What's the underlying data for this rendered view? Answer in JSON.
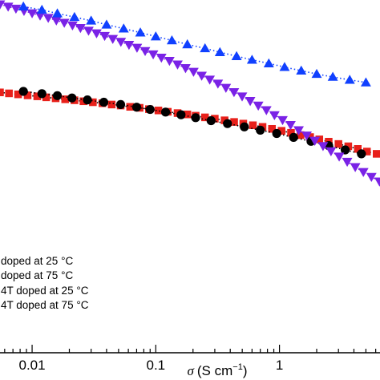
{
  "chart_data": {
    "type": "scatter",
    "title": "",
    "xlabel": {
      "symbol": "σ",
      "text": "(S cm",
      "exponent": "−1",
      "close": ")"
    },
    "ylabel": "",
    "x_scale": "log",
    "xlim": [
      0.0055,
      6.5
    ],
    "ylim": [
      0,
      1
    ],
    "grid": false,
    "legend_location": "bottom-left",
    "x_tick_labels": [
      {
        "value": 0.01,
        "label": "0.01"
      },
      {
        "value": 0.1,
        "label": "0.1"
      },
      {
        "value": 1,
        "label": "1"
      }
    ],
    "series": [
      {
        "legend": "doped at 25 °C",
        "color": "#000000",
        "marker": "circle",
        "line": "dotted",
        "x": [
          0.0085,
          0.012,
          0.016,
          0.021,
          0.028,
          0.038,
          0.052,
          0.07,
          0.09,
          0.12,
          0.16,
          0.21,
          0.28,
          0.38,
          0.52,
          0.7,
          0.95,
          1.3,
          1.8,
          2.5,
          3.4,
          4.6
        ],
        "y": [
          0.6,
          0.593,
          0.587,
          0.58,
          0.574,
          0.567,
          0.56,
          0.552,
          0.545,
          0.537,
          0.529,
          0.52,
          0.511,
          0.502,
          0.492,
          0.482,
          0.472,
          0.46,
          0.448,
          0.435,
          0.422,
          0.41
        ]
      },
      {
        "legend": "doped at 75 °C",
        "color": "#e8201a",
        "marker": "square",
        "line": "dotted",
        "x": [
          0.0055,
          0.0065,
          0.0077,
          0.0092,
          0.011,
          0.013,
          0.0155,
          0.0185,
          0.022,
          0.026,
          0.031,
          0.037,
          0.044,
          0.052,
          0.062,
          0.074,
          0.088,
          0.105,
          0.125,
          0.15,
          0.18,
          0.21,
          0.25,
          0.3,
          0.36,
          0.43,
          0.51,
          0.61,
          0.73,
          0.87,
          1.04,
          1.24,
          1.48,
          1.77,
          2.1,
          2.5,
          3.0,
          3.6,
          4.3,
          5.1,
          6.1
        ],
        "y": [
          0.597,
          0.594,
          0.591,
          0.588,
          0.585,
          0.582,
          0.579,
          0.576,
          0.573,
          0.57,
          0.567,
          0.564,
          0.56,
          0.557,
          0.553,
          0.55,
          0.546,
          0.542,
          0.538,
          0.534,
          0.53,
          0.526,
          0.521,
          0.517,
          0.512,
          0.507,
          0.502,
          0.497,
          0.492,
          0.486,
          0.48,
          0.474,
          0.467,
          0.461,
          0.454,
          0.447,
          0.44,
          0.433,
          0.425,
          0.417,
          0.41
        ]
      },
      {
        "legend": "4T doped at 25 °C",
        "color": "#1040ff",
        "marker": "triangle-up",
        "line": "dotted",
        "x": [
          0.0085,
          0.012,
          0.016,
          0.022,
          0.03,
          0.04,
          0.055,
          0.075,
          0.1,
          0.135,
          0.18,
          0.25,
          0.33,
          0.45,
          0.6,
          0.82,
          1.1,
          1.5,
          2.0,
          2.7,
          3.7,
          5.0
        ],
        "y": [
          0.858,
          0.848,
          0.837,
          0.826,
          0.815,
          0.803,
          0.791,
          0.779,
          0.767,
          0.755,
          0.743,
          0.731,
          0.719,
          0.707,
          0.696,
          0.685,
          0.674,
          0.663,
          0.653,
          0.644,
          0.635,
          0.627
        ]
      },
      {
        "legend": "4T doped at 75 °C",
        "color": "#7a22e6",
        "marker": "triangle-down",
        "line": "dotted",
        "x": [
          0.0055,
          0.0064,
          0.0074,
          0.0086,
          0.01,
          0.0116,
          0.0135,
          0.0157,
          0.0182,
          0.0212,
          0.0246,
          0.0286,
          0.0332,
          0.0386,
          0.0449,
          0.0522,
          0.0607,
          0.0705,
          0.082,
          0.0953,
          0.111,
          0.129,
          0.15,
          0.174,
          0.202,
          0.235,
          0.273,
          0.318,
          0.369,
          0.429,
          0.499,
          0.58,
          0.674,
          0.784,
          0.911,
          1.06,
          1.23,
          1.43,
          1.66,
          1.93,
          2.25,
          2.61,
          3.04,
          3.53,
          4.1,
          4.77,
          5.54,
          6.44
        ],
        "y": [
          0.865,
          0.858,
          0.852,
          0.845,
          0.838,
          0.831,
          0.824,
          0.816,
          0.809,
          0.801,
          0.793,
          0.785,
          0.777,
          0.769,
          0.76,
          0.751,
          0.742,
          0.733,
          0.723,
          0.713,
          0.703,
          0.693,
          0.682,
          0.671,
          0.66,
          0.648,
          0.636,
          0.624,
          0.611,
          0.598,
          0.585,
          0.571,
          0.557,
          0.543,
          0.528,
          0.513,
          0.498,
          0.482,
          0.466,
          0.45,
          0.434,
          0.418,
          0.402,
          0.386,
          0.37,
          0.355,
          0.34,
          0.326
        ]
      }
    ]
  }
}
